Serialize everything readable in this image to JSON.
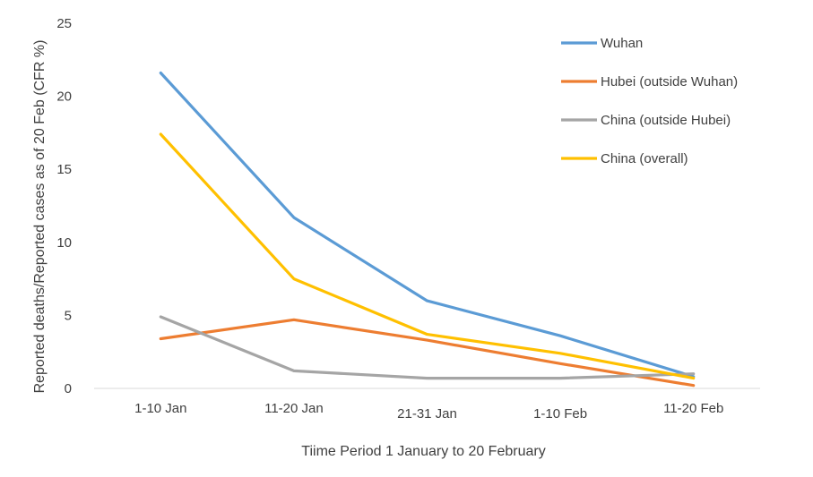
{
  "chart_data": {
    "type": "line",
    "title": "",
    "xlabel": "Tiime Period 1 January to 20 February",
    "ylabel": "Reported deaths/Reported  cases as of 20 Feb (CFR %)",
    "categories": [
      "1-10 Jan",
      "11-20 Jan",
      "21-31 Jan",
      "1-10 Feb",
      "11-20 Feb"
    ],
    "ylim": [
      0,
      25
    ],
    "yticks": [
      0,
      5,
      10,
      15,
      20,
      25
    ],
    "grid": false,
    "legend_position": "top-right",
    "series": [
      {
        "name": "Wuhan",
        "color": "#5B9BD5",
        "values": [
          21.6,
          11.7,
          6.0,
          3.6,
          0.8
        ]
      },
      {
        "name": "Hubei (outside Wuhan)",
        "color": "#ED7D31",
        "values": [
          3.4,
          4.7,
          3.3,
          1.7,
          0.2
        ]
      },
      {
        "name": "China (outside Hubei)",
        "color": "#A5A5A5",
        "values": [
          4.9,
          1.2,
          0.7,
          0.7,
          1.0
        ]
      },
      {
        "name": "China (overall)",
        "color": "#FFC000",
        "values": [
          17.4,
          7.5,
          3.7,
          2.4,
          0.7
        ]
      }
    ]
  }
}
